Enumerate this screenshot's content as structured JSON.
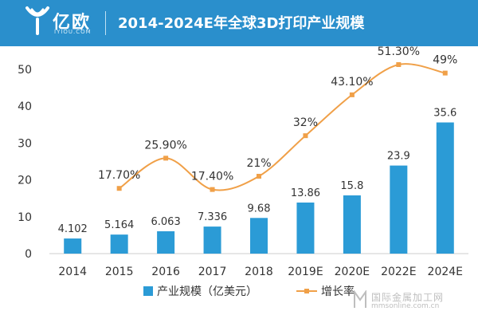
{
  "header": {
    "logo_text": "亿欧",
    "logo_subtext": "IYIOU.COM",
    "title": "2014-2024E年全球3D打印产业规模",
    "background": "#2a8fcc"
  },
  "watermark": {
    "text": "国际金属加工网",
    "url": "mmsonline.com.cn"
  },
  "chart_data": {
    "type": "bar",
    "categories": [
      "2014",
      "2015",
      "2016",
      "2017",
      "2018",
      "2019E",
      "2020E",
      "2022E",
      "2024E"
    ],
    "series": [
      {
        "name": "产业规模（亿美元）",
        "type": "bar",
        "axis": "left",
        "color": "#2b9bd6",
        "values": [
          4.102,
          5.164,
          6.063,
          7.336,
          9.68,
          13.86,
          15.8,
          23.9,
          35.6
        ],
        "labels": [
          "4.102",
          "5.164",
          "6.063",
          "7.336",
          "9.68",
          "13.86",
          "15.8",
          "23.9",
          "35.6"
        ]
      },
      {
        "name": "增长率",
        "type": "line",
        "smooth": true,
        "color": "#f0a048",
        "values": [
          null,
          17.7,
          25.9,
          17.4,
          21,
          32,
          43.1,
          51.3,
          49
        ],
        "labels": [
          "",
          "17.70%",
          "25.90%",
          "17.40%",
          "21%",
          "32%",
          "43.10%",
          "51.30%",
          "49%"
        ]
      }
    ],
    "y_ticks": [
      "0",
      "10",
      "20",
      "30",
      "40",
      "50"
    ],
    "ylim": [
      0,
      50
    ],
    "grid": false,
    "legend_position": "bottom"
  }
}
